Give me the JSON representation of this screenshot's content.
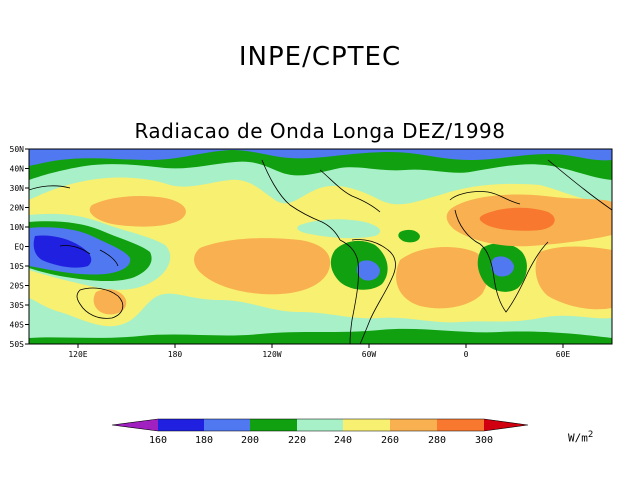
{
  "header": {
    "org_title": "INPE/CPTEC",
    "map_title": "Radiacao de Onda Longa DEZ/1998"
  },
  "map": {
    "lat_labels": [
      "50N",
      "40N",
      "30N",
      "20N",
      "10N",
      "EQ",
      "10S",
      "20S",
      "30S",
      "40S",
      "50S"
    ],
    "lon_labels": [
      "120E",
      "180",
      "120W",
      "60W",
      "0",
      "60E"
    ]
  },
  "colorbar": {
    "ticks": [
      "160",
      "180",
      "200",
      "220",
      "240",
      "260",
      "280",
      "300"
    ],
    "colors": [
      "#a020c0",
      "#2020e0",
      "#5078f0",
      "#10a010",
      "#a8f0c8",
      "#f8f070",
      "#f8b050",
      "#f87830",
      "#d00010"
    ],
    "units_base": "W/m",
    "units_exp": "2"
  }
}
